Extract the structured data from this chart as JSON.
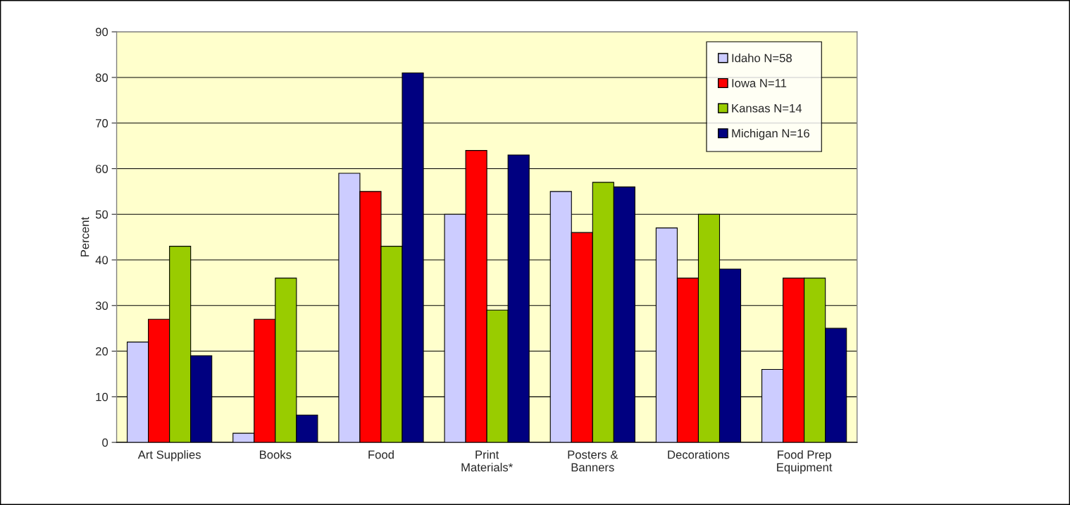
{
  "chart_data": {
    "type": "bar",
    "ylabel": "Percent",
    "categories": [
      "Art Supplies",
      "Books",
      "Food",
      "Print\nMaterials*",
      "Posters &\nBanners",
      "Decorations",
      "Food Prep\nEquipment"
    ],
    "series": [
      {
        "name": "Idaho N=58",
        "color": "#ccccff",
        "values": [
          22,
          2,
          59,
          50,
          55,
          47,
          16
        ]
      },
      {
        "name": "Iowa N=11",
        "color": "#ff0000",
        "values": [
          27,
          27,
          55,
          64,
          46,
          36,
          36
        ]
      },
      {
        "name": "Kansas N=14",
        "color": "#99cc00",
        "values": [
          43,
          36,
          43,
          29,
          57,
          50,
          36
        ]
      },
      {
        "name": "Michigan N=16",
        "color": "#000080",
        "values": [
          19,
          6,
          81,
          63,
          56,
          38,
          25
        ]
      }
    ],
    "ylim": [
      0,
      90
    ],
    "yticks": [
      0,
      10,
      20,
      30,
      40,
      50,
      60,
      70,
      80,
      90
    ],
    "grid": "y",
    "legend": "top right"
  }
}
